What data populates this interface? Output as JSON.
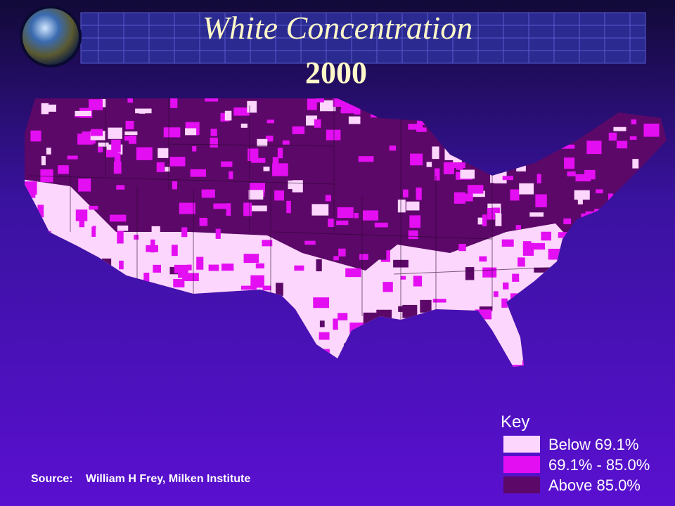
{
  "header": {
    "title": "White Concentration",
    "year": "2000"
  },
  "legend": {
    "title": "Key",
    "items": [
      {
        "label": "Below 69.1%",
        "color": "#fcd6fc"
      },
      {
        "label": "69.1% - 85.0%",
        "color": "#e40ef2"
      },
      {
        "label": "Above 85.0%",
        "color": "#5c0868"
      }
    ]
  },
  "source": {
    "label": "Source:",
    "text": "William H Frey, Milken Institute"
  }
}
